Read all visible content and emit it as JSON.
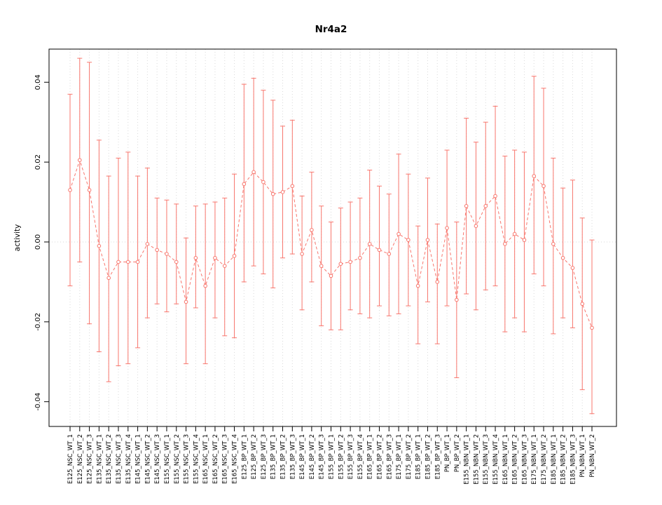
{
  "page": {
    "background": "#ffffff"
  },
  "chart_data": {
    "type": "line",
    "title": "Nr4a2",
    "ylabel": "activity",
    "xlabel": "",
    "accent_color": "#F8766D",
    "grid_color": "#d9d9d9",
    "axis_color": "#000000",
    "legend": "none",
    "grid": "dotted vertical per category plus dotted zero line",
    "ylim": [
      -0.0462,
      0.0483
    ],
    "y_ticks": [
      {
        "value": -0.04,
        "label": "-0.04"
      },
      {
        "value": -0.02,
        "label": "-0.02"
      },
      {
        "value": 0.0,
        "label": "0.00"
      },
      {
        "value": 0.02,
        "label": "0.02"
      },
      {
        "value": 0.04,
        "label": "0.04"
      }
    ],
    "categories": [
      "E125_NSC_WT_1",
      "E125_NSC_WT_2",
      "E125_NSC_WT_3",
      "E135_NSC_WT_1",
      "E135_NSC_WT_2",
      "E135_NSC_WT_3",
      "E135_NSC_WT_4",
      "E145_NSC_WT_1",
      "E145_NSC_WT_2",
      "E145_NSC_WT_3",
      "E155_NSC_WT_1",
      "E155_NSC_WT_2",
      "E155_NSC_WT_3",
      "E155_NSC_WT_4",
      "E165_NSC_WT_1",
      "E165_NSC_WT_2",
      "E165_NSC_WT_3",
      "E165_NSC_WT_4",
      "E125_BP_WT_1",
      "E125_BP_WT_2",
      "E125_BP_WT_3",
      "E135_BP_WT_1",
      "E135_BP_WT_2",
      "E135_BP_WT_3",
      "E145_BP_WT_1",
      "E145_BP_WT_2",
      "E145_BP_WT_3",
      "E155_BP_WT_1",
      "E155_BP_WT_2",
      "E155_BP_WT_3",
      "E155_BP_WT_4",
      "E165_BP_WT_1",
      "E165_BP_WT_2",
      "E165_BP_WT_3",
      "E175_BP_WT_1",
      "E175_BP_WT_2",
      "E185_BP_WT_1",
      "E185_BP_WT_2",
      "E185_BP_WT_3",
      "PN_BP_WT_1",
      "PN_BP_WT_2",
      "E155_NBN_WT_1",
      "E155_NBN_WT_2",
      "E155_NBN_WT_3",
      "E155_NBN_WT_4",
      "E165_NBN_WT_1",
      "E165_NBN_WT_2",
      "E165_NBN_WT_3",
      "E175_NBN_WT_1",
      "E175_NBN_WT_2",
      "E185_NBN_WT_1",
      "E185_NBN_WT_2",
      "E185_NBN_WT_3",
      "PN_NBN_WT_1",
      "PN_NBN_WT_2"
    ],
    "series": [
      {
        "name": "activity",
        "values": [
          0.013,
          0.0205,
          0.013,
          -0.001,
          -0.009,
          -0.005,
          -0.005,
          -0.005,
          -0.0005,
          -0.002,
          -0.003,
          -0.005,
          -0.015,
          -0.004,
          -0.011,
          -0.004,
          -0.006,
          -0.0035,
          0.0145,
          0.0175,
          0.015,
          0.012,
          0.0125,
          0.014,
          -0.003,
          0.003,
          -0.006,
          -0.0085,
          -0.0055,
          -0.005,
          -0.004,
          -0.0005,
          -0.002,
          -0.003,
          0.002,
          0.0005,
          -0.011,
          0.0005,
          -0.01,
          0.0035,
          -0.0145,
          0.009,
          0.004,
          0.009,
          0.0115,
          -0.0005,
          0.002,
          0.0005,
          0.0165,
          0.014,
          -0.0005,
          -0.004,
          -0.0065,
          -0.0155,
          -0.0215
        ],
        "lower": [
          -0.011,
          -0.005,
          -0.0205,
          -0.0275,
          -0.035,
          -0.031,
          -0.0305,
          -0.0265,
          -0.019,
          -0.0155,
          -0.0175,
          -0.0155,
          -0.0305,
          -0.0165,
          -0.0305,
          -0.019,
          -0.0235,
          -0.024,
          -0.01,
          -0.006,
          -0.008,
          -0.0115,
          -0.004,
          -0.003,
          -0.017,
          -0.01,
          -0.021,
          -0.022,
          -0.022,
          -0.017,
          -0.018,
          -0.019,
          -0.016,
          -0.0185,
          -0.018,
          -0.016,
          -0.0255,
          -0.015,
          -0.0255,
          -0.016,
          -0.034,
          -0.013,
          -0.017,
          -0.012,
          -0.011,
          -0.0225,
          -0.019,
          -0.0225,
          -0.008,
          -0.011,
          -0.023,
          -0.019,
          -0.0215,
          -0.037,
          -0.043
        ],
        "upper": [
          0.037,
          0.046,
          0.045,
          0.0255,
          0.0165,
          0.021,
          0.0225,
          0.0165,
          0.0185,
          0.011,
          0.0105,
          0.0095,
          0.001,
          0.009,
          0.0095,
          0.01,
          0.011,
          0.017,
          0.0395,
          0.041,
          0.038,
          0.0355,
          0.029,
          0.0305,
          0.0115,
          0.0175,
          0.009,
          0.005,
          0.0085,
          0.01,
          0.011,
          0.018,
          0.014,
          0.012,
          0.022,
          0.017,
          0.004,
          0.016,
          0.0045,
          0.023,
          0.005,
          0.031,
          0.025,
          0.03,
          0.034,
          0.0215,
          0.023,
          0.0225,
          0.0415,
          0.0385,
          0.021,
          0.0135,
          0.0155,
          0.006,
          0.0005
        ]
      }
    ]
  }
}
